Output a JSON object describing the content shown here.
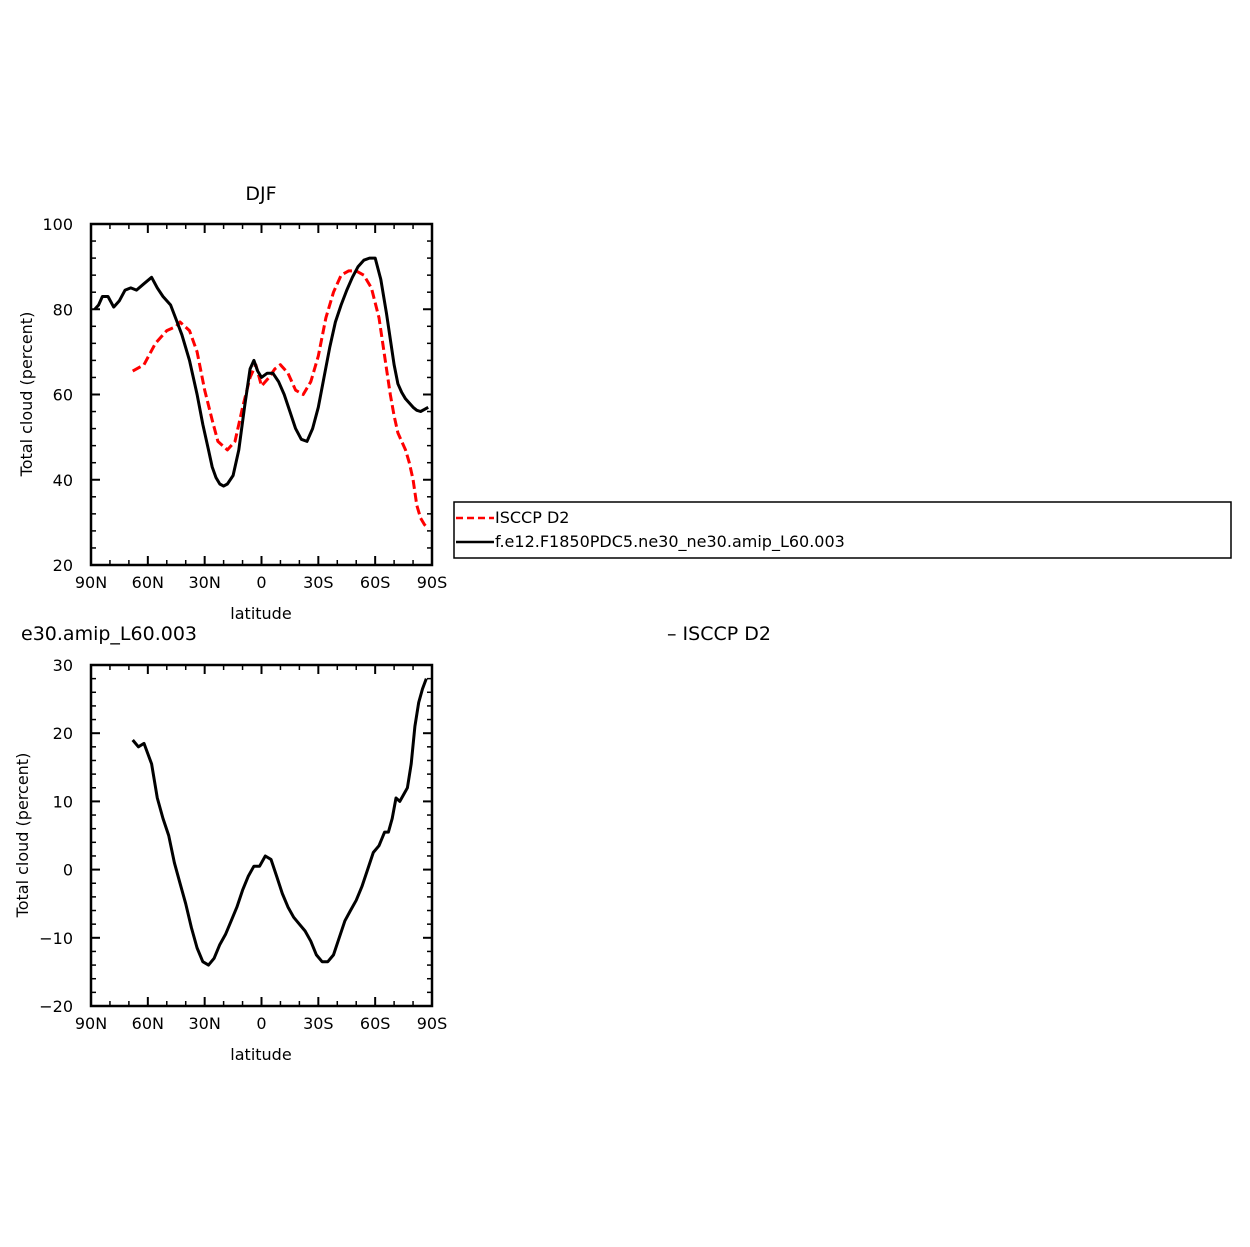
{
  "chart_data": [
    {
      "type": "line",
      "title": "DJF",
      "xlabel": "latitude",
      "ylabel": "Total cloud (percent)",
      "xlim": [
        -90,
        90
      ],
      "ylim": [
        20,
        100
      ],
      "x_tick_values": [
        -90,
        -60,
        -30,
        0,
        30,
        60,
        90
      ],
      "x_tick_labels": [
        "90N",
        "60N",
        "30N",
        "0",
        "30S",
        "60S",
        "90S"
      ],
      "y_ticks": [
        20,
        40,
        60,
        80,
        100
      ],
      "grid": false,
      "legend": {
        "placement": "right, boxed",
        "entries": [
          "ISCCP D2",
          "f.e12.F1850PDC5.ne30_ne30.amip_L60.003"
        ]
      },
      "series": [
        {
          "name": "ISCCP D2",
          "color": "#ff0000",
          "dash": true,
          "x": [
            -68,
            -62,
            -56,
            -50,
            -45,
            -43,
            -38,
            -34,
            -30,
            -26,
            -23,
            -18,
            -14,
            -10,
            -6,
            -3,
            0,
            4,
            7,
            10,
            14,
            18,
            22,
            26,
            30,
            34,
            38,
            42,
            46,
            50,
            54,
            58,
            62,
            66,
            68,
            70,
            72,
            74,
            76,
            78,
            80,
            82,
            84,
            86,
            88
          ],
          "y": [
            65.5,
            67,
            72,
            75,
            76,
            77,
            75,
            70,
            61,
            54,
            49,
            47,
            49,
            57,
            64,
            67,
            62,
            64,
            66,
            67,
            65,
            61,
            60,
            63,
            69,
            78,
            84,
            88,
            89,
            89,
            88,
            85,
            78,
            66,
            60,
            55,
            51,
            49,
            47,
            44,
            40,
            34,
            31,
            29.5,
            28.5
          ]
        },
        {
          "name": "f.e12.F1850PDC5.ne30_ne30.amip_L60.003",
          "color": "#000000",
          "dash": false,
          "x": [
            -88,
            -86,
            -84,
            -81,
            -78,
            -75,
            -72,
            -69,
            -66,
            -62,
            -58,
            -55,
            -52,
            -48,
            -45,
            -42,
            -38,
            -34,
            -31,
            -28,
            -26,
            -24,
            -22,
            -20,
            -18,
            -15,
            -12,
            -9,
            -6,
            -4,
            -2,
            0,
            3,
            6,
            9,
            12,
            15,
            18,
            21,
            24,
            27,
            30,
            33,
            36,
            39,
            42,
            45,
            48,
            51,
            54,
            57,
            60,
            63,
            66,
            68,
            70,
            72,
            74,
            76,
            78,
            80,
            82,
            84,
            86,
            88
          ],
          "y": [
            80,
            81,
            83,
            83,
            80.5,
            82,
            84.5,
            85,
            84.5,
            86,
            87.5,
            85,
            83,
            81,
            77.5,
            74,
            68,
            60,
            53,
            47,
            43,
            40.5,
            39,
            38.5,
            39,
            41,
            47,
            57,
            66,
            68,
            65.5,
            64,
            65,
            65,
            63,
            60,
            56,
            52,
            49.5,
            49,
            52,
            57,
            64,
            71,
            77,
            81,
            84.5,
            87.5,
            90,
            91.5,
            92,
            92,
            87,
            79,
            73,
            67,
            62.5,
            60.5,
            59,
            58,
            57,
            56.3,
            56,
            56.5,
            57
          ]
        }
      ]
    },
    {
      "type": "line",
      "title": "e30.amip_L60.003",
      "title_right": "– ISCCP D2",
      "xlabel": "latitude",
      "ylabel": "Total cloud (percent)",
      "xlim": [
        -90,
        90
      ],
      "ylim": [
        -20,
        30
      ],
      "x_tick_values": [
        -90,
        -60,
        -30,
        0,
        30,
        60,
        90
      ],
      "x_tick_labels": [
        "90N",
        "60N",
        "30N",
        "0",
        "30S",
        "60S",
        "90S"
      ],
      "y_ticks": [
        -20,
        -10,
        0,
        10,
        20,
        30
      ],
      "grid": false,
      "series": [
        {
          "color": "#000000",
          "dash": false,
          "x": [
            -68,
            -65,
            -62,
            -58,
            -55,
            -52,
            -49,
            -46,
            -43,
            -40,
            -37,
            -34,
            -31,
            -28,
            -25,
            -22,
            -19,
            -16,
            -13,
            -10,
            -7,
            -4,
            -1,
            2,
            5,
            8,
            11,
            14,
            17,
            20,
            23,
            26,
            29,
            32,
            35,
            38,
            41,
            44,
            47,
            50,
            53,
            56,
            59,
            62,
            65,
            67,
            69,
            71,
            73,
            75,
            77,
            79,
            81,
            83,
            85,
            87
          ],
          "y": [
            19,
            18,
            18.5,
            15.5,
            10.5,
            7.5,
            5,
            1,
            -2,
            -5,
            -8.5,
            -11.5,
            -13.5,
            -14,
            -13,
            -11,
            -9.5,
            -7.5,
            -5.5,
            -3,
            -1,
            0.5,
            0.5,
            2,
            1.5,
            -1,
            -3.5,
            -5.5,
            -7,
            -8,
            -9,
            -10.5,
            -12.5,
            -13.5,
            -13.5,
            -12.5,
            -10,
            -7.5,
            -6,
            -4.5,
            -2.5,
            0,
            2.5,
            3.5,
            5.5,
            5.5,
            7.5,
            10.5,
            10,
            11,
            12,
            15.5,
            21,
            24.5,
            26.5,
            28
          ]
        }
      ]
    }
  ]
}
